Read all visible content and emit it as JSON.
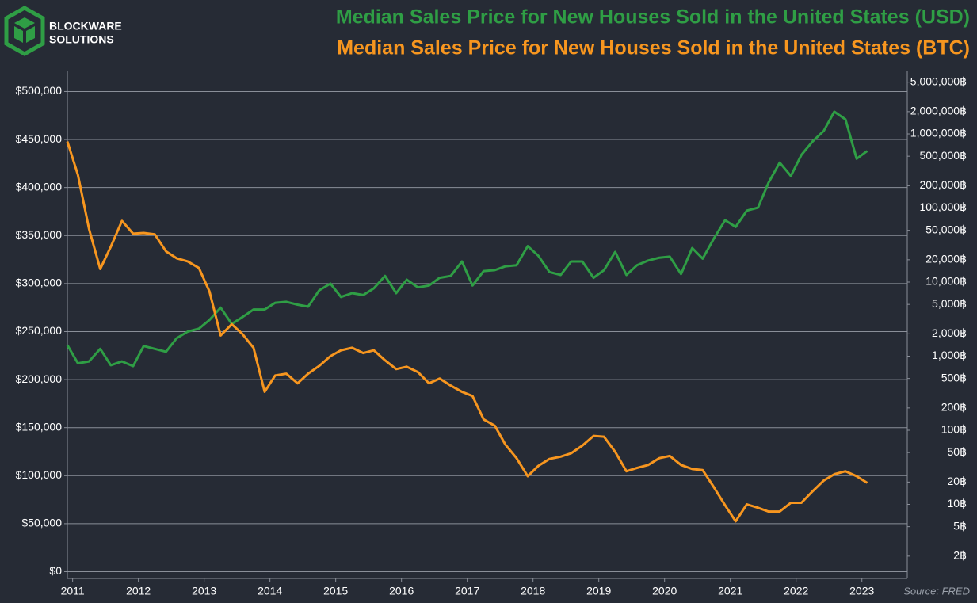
{
  "brand": {
    "line1": "BLOCKWARE",
    "line2": "SOLUTIONS"
  },
  "chart_data": {
    "type": "line",
    "source": "Source: FRED",
    "x": [
      2010.92,
      2011.08,
      2011.25,
      2011.42,
      2011.58,
      2011.75,
      2011.92,
      2012.08,
      2012.25,
      2012.42,
      2012.58,
      2012.75,
      2012.92,
      2013.08,
      2013.25,
      2013.42,
      2013.58,
      2013.75,
      2013.92,
      2014.08,
      2014.25,
      2014.42,
      2014.58,
      2014.75,
      2014.92,
      2015.08,
      2015.25,
      2015.42,
      2015.58,
      2015.75,
      2015.92,
      2016.08,
      2016.25,
      2016.42,
      2016.58,
      2016.75,
      2016.92,
      2017.08,
      2017.25,
      2017.42,
      2017.58,
      2017.75,
      2017.92,
      2018.08,
      2018.25,
      2018.42,
      2018.58,
      2018.75,
      2018.92,
      2019.08,
      2019.25,
      2019.42,
      2019.58,
      2019.75,
      2019.92,
      2020.08,
      2020.25,
      2020.42,
      2020.58,
      2020.75,
      2020.92,
      2021.08,
      2021.25,
      2021.42,
      2021.58,
      2021.75,
      2021.92,
      2022.08,
      2022.25,
      2022.42,
      2022.58,
      2022.75,
      2022.92,
      2023.08
    ],
    "series": [
      {
        "name": "Median Sales Price for New Houses Sold in the United States (USD)",
        "color": "#2f9e45",
        "axis": "y",
        "values": [
          236000,
          217000,
          219000,
          232000,
          215000,
          219000,
          214000,
          235000,
          232000,
          229000,
          243000,
          250000,
          253000,
          262000,
          275000,
          258000,
          265000,
          273000,
          273000,
          280000,
          281000,
          278000,
          276000,
          293000,
          300000,
          286000,
          290000,
          288000,
          295000,
          308000,
          290000,
          304000,
          296000,
          298000,
          306000,
          308000,
          323000,
          298000,
          313000,
          314000,
          318000,
          319000,
          339000,
          329000,
          312000,
          309000,
          323000,
          323000,
          306000,
          314000,
          333000,
          309000,
          319000,
          324000,
          327000,
          328000,
          310000,
          337000,
          326000,
          347000,
          366000,
          359000,
          376000,
          379000,
          405000,
          426000,
          412000,
          434000,
          448000,
          459000,
          479000,
          471000,
          430000,
          438000
        ]
      },
      {
        "name": "Median Sales Price for New Houses Sold in the United States (BTC)",
        "color": "#f7961f",
        "axis": "y2",
        "values": [
          790000,
          280000,
          52000,
          15000,
          30000,
          67000,
          45000,
          46000,
          44000,
          26000,
          21000,
          19000,
          15500,
          7500,
          1900,
          2700,
          2000,
          1300,
          330,
          550,
          580,
          430,
          580,
          740,
          1000,
          1200,
          1300,
          1100,
          1200,
          880,
          670,
          720,
          610,
          430,
          500,
          400,
          330,
          290,
          140,
          115,
          64,
          42,
          24,
          33,
          41,
          44,
          49,
          62,
          84,
          82,
          51,
          28,
          31,
          34,
          42,
          45,
          34,
          30,
          29,
          17,
          9.7,
          5.9,
          10,
          9,
          8,
          8,
          10.5,
          10.5,
          15,
          21,
          25.5,
          28,
          24,
          19.5
        ]
      }
    ],
    "xlim": [
      2010.92,
      2023.69
    ],
    "xticks": [
      2011,
      2012,
      2013,
      2014,
      2015,
      2016,
      2017,
      2018,
      2019,
      2020,
      2021,
      2022,
      2023
    ],
    "ylim": [
      -7000,
      521000
    ],
    "yticks": [
      {
        "value": 0,
        "label": "$0"
      },
      {
        "value": 50000,
        "label": "$50,000"
      },
      {
        "value": 100000,
        "label": "$100,000"
      },
      {
        "value": 150000,
        "label": "$150,000"
      },
      {
        "value": 200000,
        "label": "$200,000"
      },
      {
        "value": 250000,
        "label": "$250,000"
      },
      {
        "value": 300000,
        "label": "$300,000"
      },
      {
        "value": 350000,
        "label": "$350,000"
      },
      {
        "value": 400000,
        "label": "$400,000"
      },
      {
        "value": 450000,
        "label": "$450,000"
      },
      {
        "value": 500000,
        "label": "$500,000"
      }
    ],
    "y2lim": [
      1,
      7000000
    ],
    "y2log": true,
    "y2ticks": [
      {
        "value": 5000000,
        "label": "5,000,000฿"
      },
      {
        "value": 2000000,
        "label": "2,000,000฿"
      },
      {
        "value": 1000000,
        "label": "1,000,000฿"
      },
      {
        "value": 500000,
        "label": "500,000฿"
      },
      {
        "value": 200000,
        "label": "200,000฿"
      },
      {
        "value": 100000,
        "label": "100,000฿"
      },
      {
        "value": 50000,
        "label": "50,000฿"
      },
      {
        "value": 20000,
        "label": "20,000฿"
      },
      {
        "value": 10000,
        "label": "10,000฿"
      },
      {
        "value": 5000,
        "label": "5,000฿"
      },
      {
        "value": 2000,
        "label": "2,000฿"
      },
      {
        "value": 1000,
        "label": "1,000฿"
      },
      {
        "value": 500,
        "label": "500฿"
      },
      {
        "value": 200,
        "label": "200฿"
      },
      {
        "value": 100,
        "label": "100฿"
      },
      {
        "value": 50,
        "label": "50฿"
      },
      {
        "value": 20,
        "label": "20฿"
      },
      {
        "value": 10,
        "label": "10฿"
      },
      {
        "value": 5,
        "label": "5฿"
      },
      {
        "value": 2,
        "label": "2฿"
      }
    ],
    "grid": true
  }
}
